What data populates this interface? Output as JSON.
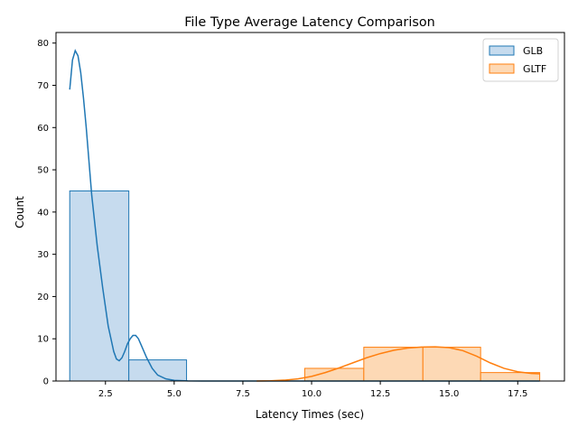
{
  "chart_data": {
    "type": "histogram",
    "title": "File Type Average Latency Comparison",
    "xlabel": "Latency Times (sec)",
    "ylabel": "Count",
    "xlim": [
      0.7,
      19.2
    ],
    "ylim": [
      0,
      82.5
    ],
    "xticks": [
      2.5,
      5.0,
      7.5,
      10.0,
      12.5,
      15.0,
      17.5
    ],
    "xtick_labels": [
      "2.5",
      "5.0",
      "7.5",
      "10.0",
      "12.5",
      "15.0",
      "17.5"
    ],
    "yticks": [
      0,
      10,
      20,
      30,
      40,
      50,
      60,
      70,
      80
    ],
    "ytick_labels": [
      "0",
      "10",
      "20",
      "30",
      "40",
      "50",
      "60",
      "70",
      "80"
    ],
    "grid": false,
    "legend_position": "top-right",
    "series": [
      {
        "name": "GLB",
        "color": "#1f77b4",
        "fill": "#c6dbee",
        "bins": [
          {
            "x0": 1.2,
            "x1": 3.35,
            "count": 45
          },
          {
            "x0": 3.35,
            "x1": 5.45,
            "count": 5
          },
          {
            "x0": 5.45,
            "x1": 7.6,
            "count": 0
          },
          {
            "x0": 7.6,
            "x1": 9.75,
            "count": 0
          },
          {
            "x0": 9.75,
            "x1": 11.9,
            "count": 0
          },
          {
            "x0": 11.9,
            "x1": 14.05,
            "count": 0
          },
          {
            "x0": 14.05,
            "x1": 16.15,
            "count": 0
          },
          {
            "x0": 16.15,
            "x1": 18.3,
            "count": 0
          }
        ],
        "kde": [
          [
            1.2,
            69
          ],
          [
            1.3,
            76
          ],
          [
            1.4,
            78.2
          ],
          [
            1.5,
            77
          ],
          [
            1.6,
            73
          ],
          [
            1.7,
            67
          ],
          [
            1.8,
            60
          ],
          [
            1.9,
            52
          ],
          [
            2.0,
            44
          ],
          [
            2.2,
            32
          ],
          [
            2.4,
            22
          ],
          [
            2.6,
            13
          ],
          [
            2.8,
            7
          ],
          [
            2.9,
            5.2
          ],
          [
            3.0,
            4.8
          ],
          [
            3.1,
            5.5
          ],
          [
            3.2,
            7
          ],
          [
            3.3,
            8.8
          ],
          [
            3.4,
            10
          ],
          [
            3.5,
            10.8
          ],
          [
            3.6,
            10.8
          ],
          [
            3.7,
            10
          ],
          [
            3.8,
            8.5
          ],
          [
            4.0,
            5.5
          ],
          [
            4.2,
            3
          ],
          [
            4.4,
            1.4
          ],
          [
            4.7,
            0.5
          ],
          [
            5.0,
            0.15
          ],
          [
            5.5,
            0.02
          ],
          [
            6.0,
            0
          ],
          [
            18.3,
            0
          ]
        ]
      },
      {
        "name": "GLTF",
        "color": "#ff7f0e",
        "fill": "#fdd9b5",
        "bins": [
          {
            "x0": 1.2,
            "x1": 3.35,
            "count": 0
          },
          {
            "x0": 3.35,
            "x1": 5.45,
            "count": 0
          },
          {
            "x0": 5.45,
            "x1": 7.6,
            "count": 0
          },
          {
            "x0": 7.6,
            "x1": 9.75,
            "count": 0
          },
          {
            "x0": 9.75,
            "x1": 11.9,
            "count": 3
          },
          {
            "x0": 11.9,
            "x1": 14.05,
            "count": 8
          },
          {
            "x0": 14.05,
            "x1": 16.15,
            "count": 8
          },
          {
            "x0": 16.15,
            "x1": 18.3,
            "count": 2
          }
        ],
        "kde": [
          [
            8.0,
            0
          ],
          [
            8.5,
            0.05
          ],
          [
            9.0,
            0.2
          ],
          [
            9.5,
            0.5
          ],
          [
            10.0,
            1.1
          ],
          [
            10.5,
            2.0
          ],
          [
            11.0,
            3.1
          ],
          [
            11.5,
            4.3
          ],
          [
            12.0,
            5.5
          ],
          [
            12.5,
            6.5
          ],
          [
            13.0,
            7.3
          ],
          [
            13.5,
            7.8
          ],
          [
            14.0,
            8.05
          ],
          [
            14.5,
            8.1
          ],
          [
            15.0,
            7.9
          ],
          [
            15.5,
            7.2
          ],
          [
            16.0,
            5.9
          ],
          [
            16.5,
            4.3
          ],
          [
            17.0,
            3.0
          ],
          [
            17.5,
            2.2
          ],
          [
            18.0,
            1.8
          ],
          [
            18.3,
            1.7
          ]
        ]
      }
    ]
  }
}
